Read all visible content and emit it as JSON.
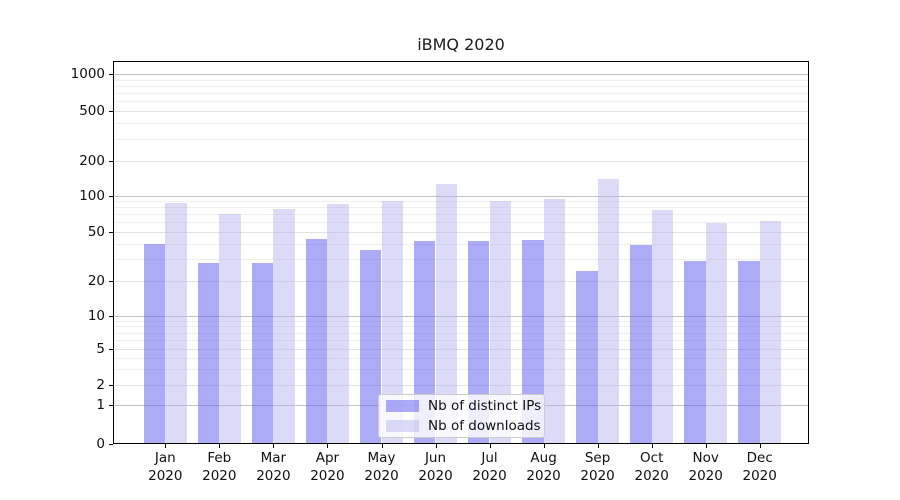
{
  "title": "iBMQ 2020",
  "chart_data": {
    "type": "bar",
    "title": "iBMQ 2020",
    "y_scale": "symlog",
    "grid": true,
    "ylim": [
      0,
      1280
    ],
    "y_ticks": [
      0,
      1,
      2,
      5,
      10,
      20,
      50,
      100,
      200,
      500,
      1000
    ],
    "minor_grid_values": [
      3,
      4,
      6,
      7,
      8,
      9,
      30,
      40,
      60,
      70,
      80,
      90,
      300,
      400,
      600,
      700,
      800,
      900
    ],
    "categories": [
      "Jan",
      "Feb",
      "Mar",
      "Apr",
      "May",
      "Jun",
      "Jul",
      "Aug",
      "Sep",
      "Oct",
      "Nov",
      "Dec"
    ],
    "x_tick_line2": "2020",
    "series": [
      {
        "name": "Nb of distinct IPs",
        "color": "rgba(88,88,238,0.5)",
        "values": [
          40,
          28,
          28,
          44,
          36,
          42,
          42,
          43,
          24,
          39,
          29,
          29
        ]
      },
      {
        "name": "Nb of downloads",
        "color": "rgba(176,176,240,0.45)",
        "values": [
          86,
          70,
          78,
          85,
          90,
          125,
          90,
          93,
          140,
          76,
          59,
          62
        ]
      }
    ],
    "legend_position": "lower-center"
  }
}
